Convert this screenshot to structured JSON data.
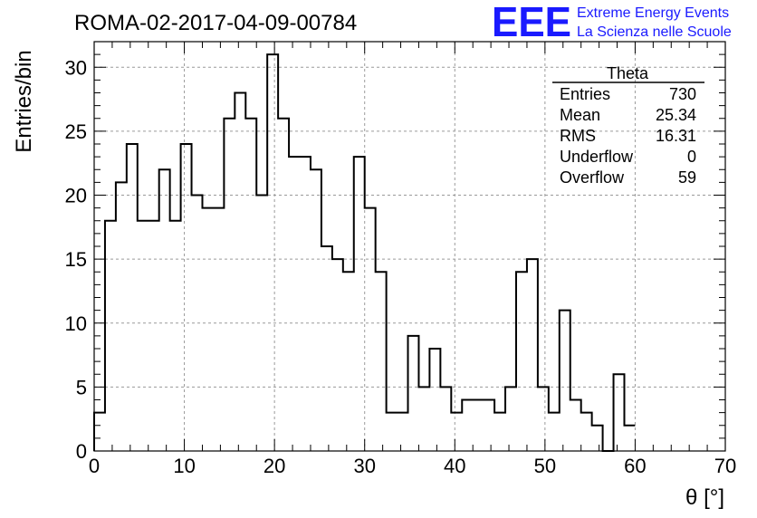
{
  "page": {
    "run_title": "ROMA-02-2017-04-09-00784",
    "logo": {
      "mark": "EEE",
      "line1": "Extreme Energy Events",
      "line2": "La Scienza nelle Scuole",
      "color": "#1a1aff"
    }
  },
  "chart_data": {
    "type": "histogram",
    "xlabel": "θ [°]",
    "ylabel": "Entries/bin",
    "xlim": [
      0,
      70
    ],
    "ylim": [
      0,
      32
    ],
    "x_ticks": [
      0,
      10,
      20,
      30,
      40,
      50,
      60,
      70
    ],
    "y_ticks": [
      0,
      5,
      10,
      15,
      20,
      25,
      30
    ],
    "grid": true,
    "bin_width": 1.2,
    "bin_start": 0,
    "values": [
      3,
      18,
      21,
      24,
      18,
      18,
      22,
      18,
      24,
      20,
      19,
      19,
      26,
      28,
      26,
      20,
      31,
      26,
      23,
      23,
      22,
      16,
      15,
      14,
      23,
      19,
      14,
      3,
      3,
      9,
      5,
      8,
      5,
      3,
      4,
      4,
      4,
      3,
      5,
      14,
      15,
      5,
      3,
      11,
      4,
      3,
      2,
      0,
      6,
      2
    ],
    "stats": {
      "name": "Theta",
      "rows": [
        {
          "label": "Entries",
          "value": "730"
        },
        {
          "label": "Mean",
          "value": "25.34"
        },
        {
          "label": "RMS",
          "value": "16.31"
        },
        {
          "label": "Underflow",
          "value": "0"
        },
        {
          "label": "Overflow",
          "value": "59"
        }
      ]
    }
  }
}
